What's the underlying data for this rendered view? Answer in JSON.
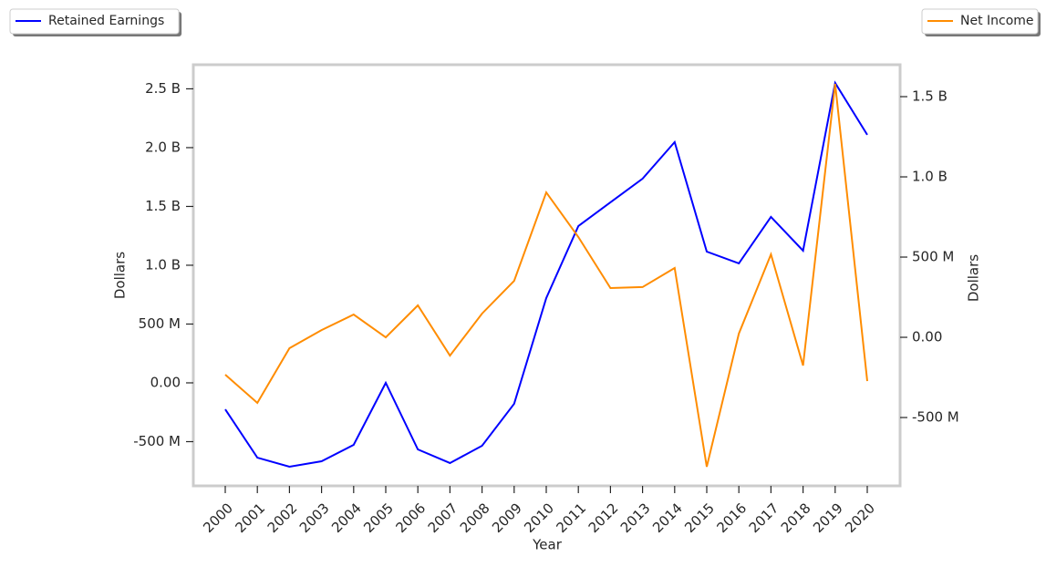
{
  "chart_data": {
    "type": "line",
    "x_label": "Year",
    "y_label": "Dollars",
    "y2_label": "Dollars",
    "categories": [
      "2000",
      "2001",
      "2002",
      "2003",
      "2004",
      "2005",
      "2006",
      "2007",
      "2008",
      "2009",
      "2010",
      "2011",
      "2012",
      "2013",
      "2014",
      "2015",
      "2016",
      "2017",
      "2018",
      "2019",
      "2020"
    ],
    "series": [
      {
        "name": "Retained Earnings",
        "color": "#0000ff",
        "axis": "y",
        "legend": "upper left",
        "values": [
          -225000000,
          -636000000,
          -713000000,
          -667000000,
          -527000000,
          0,
          -566000000,
          -682000000,
          -535000000,
          -178000000,
          721000000,
          1333000000,
          1535000000,
          1736000000,
          2047000000,
          1116000000,
          1016000000,
          1411000000,
          1124000000,
          2550000000,
          2109000000
        ]
      },
      {
        "name": "Net Income",
        "color": "#ff8c00",
        "axis": "y2",
        "legend": "upper right",
        "values": [
          -233000000,
          -409000000,
          -68000000,
          45000000,
          142000000,
          0,
          199000000,
          -114000000,
          148000000,
          352000000,
          903000000,
          625000000,
          307000000,
          313000000,
          432000000,
          -807000000,
          23000000,
          517000000,
          -176000000,
          1580000000,
          -273000000
        ]
      }
    ],
    "ylim": [
      -876000000,
      2705000000
    ],
    "yticks": [
      {
        "value": -500000000,
        "label": "-500 M"
      },
      {
        "value": 0,
        "label": "0.00"
      },
      {
        "value": 500000000,
        "label": "500 M"
      },
      {
        "value": 1000000000,
        "label": "1.0 B"
      },
      {
        "value": 1500000000,
        "label": "1.5 B"
      },
      {
        "value": 2000000000,
        "label": "2.0 B"
      },
      {
        "value": 2500000000,
        "label": "2.5 B"
      }
    ],
    "y2lim": [
      -926000000,
      1699000000
    ],
    "y2ticks": [
      {
        "value": -500000000,
        "label": "-500 M"
      },
      {
        "value": 0,
        "label": "0.00"
      },
      {
        "value": 500000000,
        "label": "500 M"
      },
      {
        "value": 1000000000,
        "label": "1.0 B"
      },
      {
        "value": 1500000000,
        "label": "1.5 B"
      }
    ],
    "grid": false
  }
}
